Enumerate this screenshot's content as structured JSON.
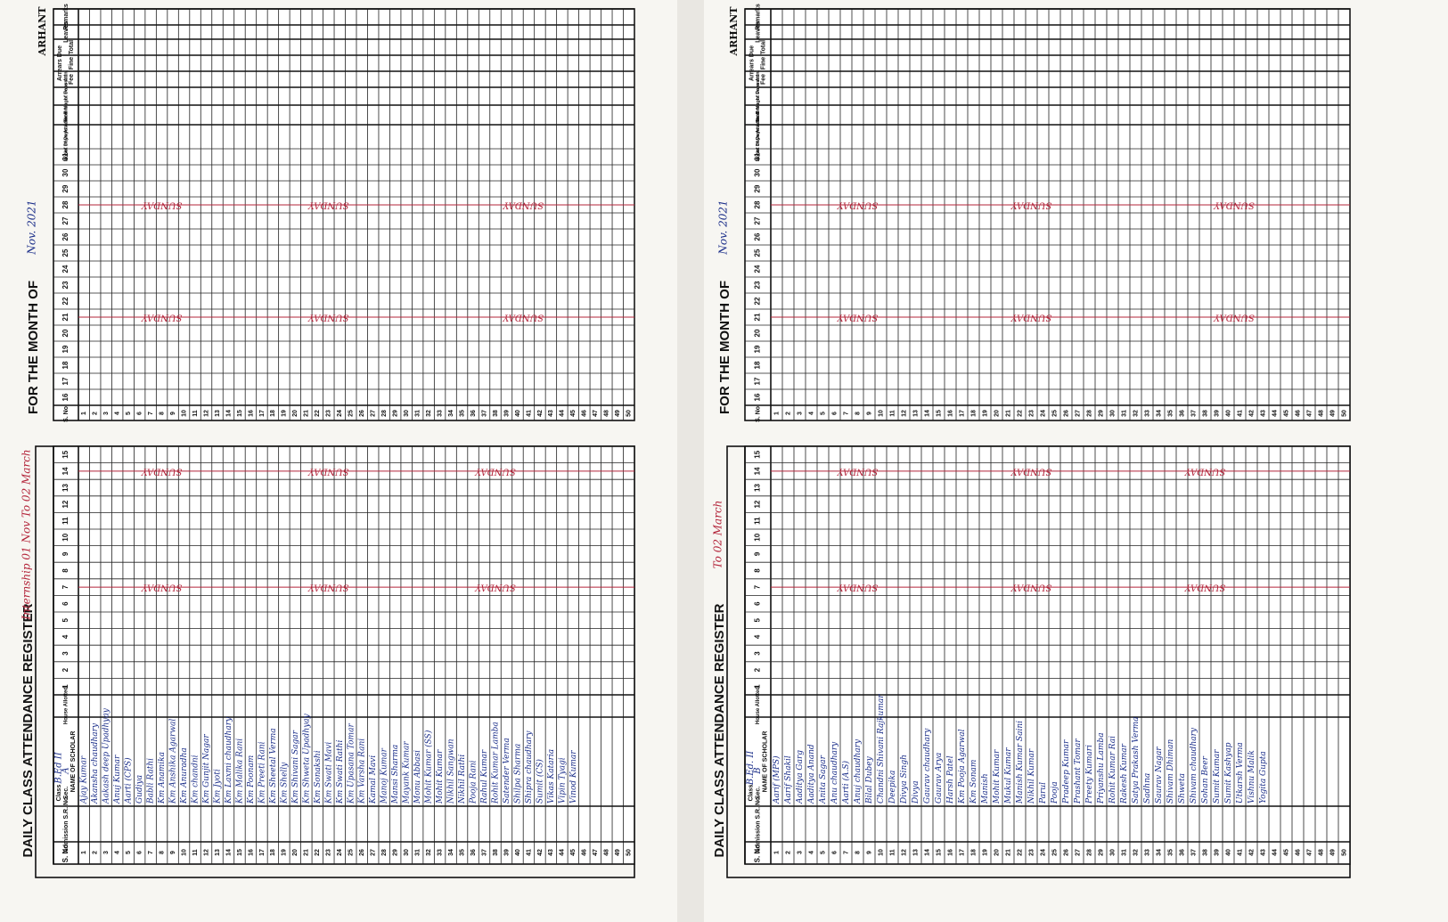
{
  "logo": "ARHANT",
  "register_title": "DAILY CLASS ATTENDANCE REGISTER",
  "month_label": "FOR THE MONTH OF",
  "headers": {
    "sno": "S. No.",
    "admission": "Admission S.R. No.",
    "name": "NAME OF SCHOLAR",
    "house": "House Allotted",
    "class": "Class",
    "sec": "Sec.",
    "attended": "No. of Days Attended",
    "brought": "No. of Days Attn. Brought Forward",
    "total_days": "Total No. of Days Attn.",
    "arrears": "Arrears Due",
    "fee": "Fee",
    "fine": "Fine",
    "total": "Total",
    "leaves": "Leaves",
    "remarks": "Remarks"
  },
  "days_first": [
    1,
    2,
    3,
    4,
    5,
    6,
    7,
    8,
    9,
    10,
    11,
    12,
    13,
    14,
    15
  ],
  "days_second": [
    16,
    17,
    18,
    19,
    20,
    21,
    22,
    23,
    24,
    25,
    26,
    27,
    28,
    29,
    30,
    31
  ],
  "serial": [
    1,
    2,
    3,
    4,
    5,
    6,
    7,
    8,
    9,
    10,
    11,
    12,
    13,
    14,
    15,
    16,
    17,
    18,
    19,
    20,
    21,
    22,
    23,
    24,
    25,
    26,
    27,
    28,
    29,
    30,
    31,
    32,
    33,
    34,
    35,
    36,
    37,
    38,
    39,
    40,
    41,
    42,
    43,
    44,
    45,
    46,
    47,
    48,
    49,
    50
  ],
  "sheets": [
    {
      "class": "B.Ed II",
      "sec": "A",
      "month": "Nov. 2021",
      "note": "Internship 01 Nov To 02 March",
      "sunday": "SUNDAY",
      "names": [
        "Ajay Kumar",
        "Akansha chaudhary",
        "Aakash deep Upadhyay",
        "Anuj Kumar",
        "Aarti (CPS)",
        "Gudiya",
        "Babli Rathi",
        "Km Anamika",
        "Km Anshika Agarwal",
        "Km Anuradha",
        "Km chandni",
        "Km Gunjit Nagar",
        "Km Jyoti",
        "Km Laxmi chaudhary",
        "Km Malika Rani",
        "Km Poonam",
        "Km Preeti Rani",
        "Km Sheetal Verma",
        "Km Shelly",
        "Km Shivani Sagar",
        "Km Shweta Upadhyay",
        "Km Sonakshi",
        "Km Swati Mavi",
        "Km Swati Rathi",
        "Km Upasana Tomar",
        "Km Varsha Rani",
        "Kamal Mavi",
        "Manoj Kumar",
        "Mansi Sharma",
        "Mayank Kumar",
        "Monu Abbasi",
        "Mohit Kumar (SS)",
        "Mohit Kumar",
        "Nikhil Sangwan",
        "Nikhil Rathi",
        "Pooja Rani",
        "Rahul Kumar",
        "Rohit Kumar Lamba",
        "Satender Verma",
        "Shilpa Sharma",
        "Shipra chaudhary",
        "Sumit (CS)",
        "Vikas Kataria",
        "Vipin Tyagi",
        "Vinod Kumar"
      ]
    },
    {
      "class": "B.Ed. II",
      "sec": "B",
      "month": "Nov. 2021",
      "note": "To 02 March",
      "sunday": "SUNDAY",
      "names": [
        "Aarif (MPS)",
        "Aarif Shakil",
        "Aaditya Garg",
        "Aaditya Anand",
        "Anita Sagar",
        "Anu chaudhary",
        "Aarti (A.S)",
        "Anuj chaudhary",
        "Bilal Dubey",
        "Chandni Shivani Rajkumar",
        "Deepika",
        "Divya Singh",
        "Divya",
        "Gaurav chaudhary",
        "Gaurav Arya",
        "Harsh Patel",
        "Km Pooja Agarwal",
        "Km Sonam",
        "Manish",
        "Mohit Kumar",
        "Mukul Kumar",
        "Manish Kumar Saini",
        "Nikhil Kumar",
        "Parul",
        "Pooja",
        "Pradeep Kumar",
        "Prashant Tomar",
        "Preety Kumari",
        "Priyanshu Lamba",
        "Rohit Kumar Rai",
        "Rakesh Kumar",
        "Satya Prakash Verma",
        "Sadhna",
        "Saurav Nagar",
        "Shivam Dhiman",
        "Shweta",
        "Shivam chaudhary",
        "Sohan Beer",
        "Sumit Kumar",
        "Sumit Kashyap",
        "Utkarsh Verma",
        "Vishnu Malik",
        "Yogita Gupta"
      ]
    }
  ]
}
